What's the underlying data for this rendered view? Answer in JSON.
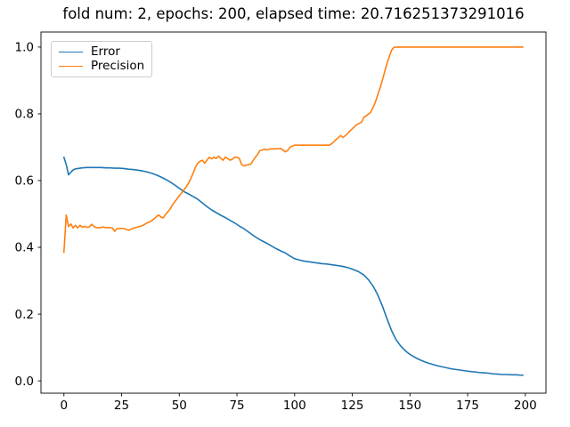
{
  "title": "fold num: 2, epochs: 200, elapsed time: 20.716251373291016",
  "colors": {
    "error_line": "#1f77b4",
    "precision_line": "#ff7f0e",
    "background": "#ffffff",
    "spine": "#000000",
    "tick_label": "#000000",
    "legend_border": "#cccccc"
  },
  "legend": {
    "position": "upper left",
    "items": [
      {
        "label": "Error",
        "color": "#1f77b4"
      },
      {
        "label": "Precision",
        "color": "#ff7f0e"
      }
    ]
  },
  "chart_data": {
    "type": "line",
    "title": "fold num: 2, epochs: 200, elapsed time: 20.716251373291016",
    "xlabel": "",
    "ylabel": "",
    "xlim": [
      -9.95,
      208.95
    ],
    "ylim": [
      -0.037,
      1.045
    ],
    "x_ticks": [
      0,
      25,
      50,
      75,
      100,
      125,
      150,
      175,
      200
    ],
    "y_ticks": [
      0.0,
      0.2,
      0.4,
      0.6,
      0.8,
      1.0
    ],
    "y_tick_labels": [
      "0.0",
      "0.2",
      "0.4",
      "0.6",
      "0.8",
      "1.0"
    ],
    "grid": false,
    "legend_position": "upper left",
    "series": [
      {
        "name": "Error",
        "color": "#1f77b4",
        "points": [
          [
            0,
            0.67
          ],
          [
            1,
            0.648
          ],
          [
            2,
            0.617
          ],
          [
            3,
            0.625
          ],
          [
            4,
            0.632
          ],
          [
            5,
            0.635
          ],
          [
            6,
            0.636
          ],
          [
            8,
            0.638
          ],
          [
            10,
            0.639
          ],
          [
            12,
            0.639
          ],
          [
            14,
            0.639
          ],
          [
            16,
            0.639
          ],
          [
            18,
            0.638
          ],
          [
            20,
            0.638
          ],
          [
            22,
            0.637
          ],
          [
            24,
            0.637
          ],
          [
            26,
            0.636
          ],
          [
            28,
            0.634
          ],
          [
            30,
            0.633
          ],
          [
            32,
            0.631
          ],
          [
            34,
            0.629
          ],
          [
            36,
            0.626
          ],
          [
            38,
            0.622
          ],
          [
            40,
            0.617
          ],
          [
            42,
            0.611
          ],
          [
            44,
            0.604
          ],
          [
            46,
            0.596
          ],
          [
            48,
            0.587
          ],
          [
            50,
            0.577
          ],
          [
            52,
            0.567
          ],
          [
            54,
            0.56
          ],
          [
            56,
            0.552
          ],
          [
            58,
            0.544
          ],
          [
            60,
            0.533
          ],
          [
            62,
            0.522
          ],
          [
            64,
            0.512
          ],
          [
            66,
            0.504
          ],
          [
            68,
            0.496
          ],
          [
            70,
            0.489
          ],
          [
            72,
            0.481
          ],
          [
            74,
            0.473
          ],
          [
            76,
            0.464
          ],
          [
            78,
            0.456
          ],
          [
            80,
            0.446
          ],
          [
            82,
            0.436
          ],
          [
            84,
            0.427
          ],
          [
            86,
            0.419
          ],
          [
            88,
            0.412
          ],
          [
            90,
            0.404
          ],
          [
            92,
            0.396
          ],
          [
            94,
            0.389
          ],
          [
            96,
            0.383
          ],
          [
            98,
            0.374
          ],
          [
            100,
            0.366
          ],
          [
            102,
            0.362
          ],
          [
            104,
            0.359
          ],
          [
            106,
            0.357
          ],
          [
            108,
            0.355
          ],
          [
            110,
            0.353
          ],
          [
            112,
            0.351
          ],
          [
            114,
            0.35
          ],
          [
            116,
            0.348
          ],
          [
            118,
            0.346
          ],
          [
            120,
            0.344
          ],
          [
            122,
            0.341
          ],
          [
            124,
            0.337
          ],
          [
            126,
            0.332
          ],
          [
            128,
            0.326
          ],
          [
            130,
            0.317
          ],
          [
            132,
            0.303
          ],
          [
            134,
            0.284
          ],
          [
            136,
            0.258
          ],
          [
            138,
            0.225
          ],
          [
            140,
            0.187
          ],
          [
            142,
            0.151
          ],
          [
            144,
            0.123
          ],
          [
            146,
            0.104
          ],
          [
            148,
            0.09
          ],
          [
            150,
            0.079
          ],
          [
            152,
            0.071
          ],
          [
            154,
            0.064
          ],
          [
            156,
            0.058
          ],
          [
            158,
            0.053
          ],
          [
            160,
            0.049
          ],
          [
            162,
            0.045
          ],
          [
            164,
            0.042
          ],
          [
            166,
            0.039
          ],
          [
            168,
            0.036
          ],
          [
            170,
            0.034
          ],
          [
            172,
            0.032
          ],
          [
            174,
            0.03
          ],
          [
            176,
            0.028
          ],
          [
            178,
            0.027
          ],
          [
            180,
            0.025
          ],
          [
            182,
            0.024
          ],
          [
            184,
            0.023
          ],
          [
            186,
            0.021
          ],
          [
            188,
            0.02
          ],
          [
            190,
            0.019
          ],
          [
            192,
            0.019
          ],
          [
            194,
            0.018
          ],
          [
            196,
            0.018
          ],
          [
            198,
            0.017
          ],
          [
            199,
            0.017
          ]
        ]
      },
      {
        "name": "Precision",
        "color": "#ff7f0e",
        "points": [
          [
            0,
            0.385
          ],
          [
            1,
            0.497
          ],
          [
            2,
            0.462
          ],
          [
            3,
            0.47
          ],
          [
            4,
            0.458
          ],
          [
            5,
            0.466
          ],
          [
            6,
            0.458
          ],
          [
            7,
            0.466
          ],
          [
            8,
            0.46
          ],
          [
            9,
            0.463
          ],
          [
            10,
            0.46
          ],
          [
            11,
            0.461
          ],
          [
            12,
            0.469
          ],
          [
            13,
            0.463
          ],
          [
            14,
            0.459
          ],
          [
            16,
            0.459
          ],
          [
            17,
            0.461
          ],
          [
            18,
            0.459
          ],
          [
            20,
            0.459
          ],
          [
            21,
            0.458
          ],
          [
            22,
            0.448
          ],
          [
            23,
            0.456
          ],
          [
            24,
            0.456
          ],
          [
            25,
            0.457
          ],
          [
            26,
            0.456
          ],
          [
            27,
            0.454
          ],
          [
            28,
            0.451
          ],
          [
            29,
            0.454
          ],
          [
            30,
            0.457
          ],
          [
            31,
            0.459
          ],
          [
            32,
            0.461
          ],
          [
            33,
            0.463
          ],
          [
            34,
            0.465
          ],
          [
            35,
            0.469
          ],
          [
            36,
            0.473
          ],
          [
            37,
            0.476
          ],
          [
            38,
            0.479
          ],
          [
            39,
            0.485
          ],
          [
            40,
            0.491
          ],
          [
            41,
            0.497
          ],
          [
            42,
            0.491
          ],
          [
            43,
            0.488
          ],
          [
            44,
            0.498
          ],
          [
            45,
            0.506
          ],
          [
            46,
            0.514
          ],
          [
            47,
            0.527
          ],
          [
            48,
            0.536
          ],
          [
            49,
            0.545
          ],
          [
            50,
            0.555
          ],
          [
            51,
            0.563
          ],
          [
            52,
            0.572
          ],
          [
            53,
            0.581
          ],
          [
            54,
            0.592
          ],
          [
            55,
            0.606
          ],
          [
            56,
            0.622
          ],
          [
            57,
            0.64
          ],
          [
            58,
            0.652
          ],
          [
            59,
            0.658
          ],
          [
            60,
            0.661
          ],
          [
            61,
            0.652
          ],
          [
            62,
            0.661
          ],
          [
            63,
            0.67
          ],
          [
            64,
            0.665
          ],
          [
            65,
            0.67
          ],
          [
            66,
            0.666
          ],
          [
            67,
            0.673
          ],
          [
            68,
            0.667
          ],
          [
            69,
            0.661
          ],
          [
            70,
            0.67
          ],
          [
            71,
            0.666
          ],
          [
            72,
            0.661
          ],
          [
            73,
            0.664
          ],
          [
            74,
            0.67
          ],
          [
            75,
            0.67
          ],
          [
            76,
            0.667
          ],
          [
            77,
            0.648
          ],
          [
            78,
            0.644
          ],
          [
            79,
            0.646
          ],
          [
            80,
            0.648
          ],
          [
            81,
            0.649
          ],
          [
            82,
            0.66
          ],
          [
            83,
            0.67
          ],
          [
            84,
            0.679
          ],
          [
            85,
            0.69
          ],
          [
            86,
            0.692
          ],
          [
            87,
            0.694
          ],
          [
            88,
            0.692
          ],
          [
            89,
            0.694
          ],
          [
            90,
            0.695
          ],
          [
            92,
            0.695
          ],
          [
            94,
            0.696
          ],
          [
            96,
            0.686
          ],
          [
            97,
            0.69
          ],
          [
            98,
            0.7
          ],
          [
            100,
            0.706
          ],
          [
            104,
            0.706
          ],
          [
            108,
            0.706
          ],
          [
            112,
            0.706
          ],
          [
            115,
            0.706
          ],
          [
            116,
            0.71
          ],
          [
            117,
            0.716
          ],
          [
            118,
            0.723
          ],
          [
            119,
            0.729
          ],
          [
            120,
            0.735
          ],
          [
            121,
            0.729
          ],
          [
            122,
            0.735
          ],
          [
            123,
            0.741
          ],
          [
            124,
            0.749
          ],
          [
            125,
            0.755
          ],
          [
            126,
            0.762
          ],
          [
            127,
            0.768
          ],
          [
            128,
            0.771
          ],
          [
            129,
            0.775
          ],
          [
            130,
            0.789
          ],
          [
            131,
            0.794
          ],
          [
            132,
            0.799
          ],
          [
            133,
            0.805
          ],
          [
            134,
            0.819
          ],
          [
            135,
            0.835
          ],
          [
            136,
            0.856
          ],
          [
            137,
            0.876
          ],
          [
            138,
            0.9
          ],
          [
            139,
            0.925
          ],
          [
            140,
            0.95
          ],
          [
            141,
            0.97
          ],
          [
            142,
            0.99
          ],
          [
            143,
            0.999
          ],
          [
            144,
            1.0
          ],
          [
            150,
            1.0
          ],
          [
            160,
            1.0
          ],
          [
            170,
            1.0
          ],
          [
            180,
            1.0
          ],
          [
            190,
            1.0
          ],
          [
            199,
            1.0
          ]
        ]
      }
    ]
  }
}
